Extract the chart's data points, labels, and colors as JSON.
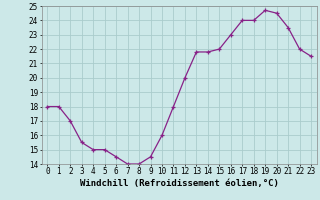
{
  "x": [
    0,
    1,
    2,
    3,
    4,
    5,
    6,
    7,
    8,
    9,
    10,
    11,
    12,
    13,
    14,
    15,
    16,
    17,
    18,
    19,
    20,
    21,
    22,
    23
  ],
  "y": [
    18,
    18,
    17,
    15.5,
    15,
    15,
    14.5,
    14,
    14,
    14.5,
    16,
    18,
    20,
    21.8,
    21.8,
    22,
    23,
    24,
    24,
    24.7,
    24.5,
    23.5,
    22,
    21.5
  ],
  "line_color": "#882288",
  "marker": "+",
  "bg_color": "#cce8e8",
  "grid_color": "#aacccc",
  "ylim": [
    14,
    25
  ],
  "yticks": [
    14,
    15,
    16,
    17,
    18,
    19,
    20,
    21,
    22,
    23,
    24,
    25
  ],
  "xticks": [
    0,
    1,
    2,
    3,
    4,
    5,
    6,
    7,
    8,
    9,
    10,
    11,
    12,
    13,
    14,
    15,
    16,
    17,
    18,
    19,
    20,
    21,
    22,
    23
  ],
  "xlabel": "Windchill (Refroidissement éolien,°C)",
  "tick_fontsize": 5.5,
  "xlabel_fontsize": 6.5
}
